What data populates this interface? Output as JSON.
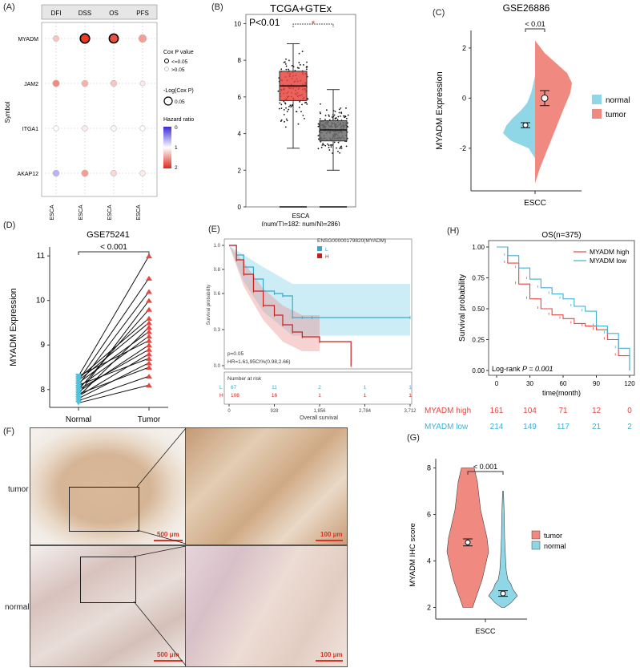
{
  "panels": {
    "A": "(A)",
    "B": "(B)",
    "C": "(C)",
    "D": "(D)",
    "E": "(E)",
    "F": "(F)",
    "G": "(G)",
    "H": "(H)"
  },
  "colors": {
    "tumor_red": "#e8463f",
    "normal_blue": "#4fc3dc",
    "ink": "#222222",
    "tumor_violin": "#f08a80",
    "normal_violin": "#8fd6e6",
    "gray_box": "#6e6e6e"
  },
  "chart_data": [
    {
      "id": "A",
      "type": "scatter",
      "columns": [
        "DFI",
        "DSS",
        "OS",
        "PFS"
      ],
      "column_bottom_labels": [
        "ESCA",
        "ESCA",
        "ESCA",
        "ESCA"
      ],
      "rows": [
        "MYADM",
        "JAM2",
        "ITGA1",
        "AKAP12"
      ],
      "ylabel": "Symbol",
      "legend": {
        "cox_title": "Cox P value",
        "cox_items": [
          "<=0.05",
          ">0.05"
        ],
        "size_title": "-Log(Cox P)",
        "size_value": "0.05",
        "color_title": "Hazard ratio",
        "color_ticks": [
          "0",
          "1",
          "2"
        ]
      },
      "points": [
        {
          "row": "MYADM",
          "col": "DFI",
          "hr": 1.3,
          "size": 0.4,
          "sig": false
        },
        {
          "row": "MYADM",
          "col": "DSS",
          "hr": 2.0,
          "size": 1.0,
          "sig": true
        },
        {
          "row": "MYADM",
          "col": "OS",
          "hr": 1.9,
          "size": 0.95,
          "sig": true
        },
        {
          "row": "MYADM",
          "col": "PFS",
          "hr": 1.5,
          "size": 0.75,
          "sig": false
        },
        {
          "row": "JAM2",
          "col": "DFI",
          "hr": 1.6,
          "size": 0.55,
          "sig": false
        },
        {
          "row": "JAM2",
          "col": "DSS",
          "hr": 1.4,
          "size": 0.5,
          "sig": false
        },
        {
          "row": "JAM2",
          "col": "OS",
          "hr": 1.3,
          "size": 0.45,
          "sig": false
        },
        {
          "row": "JAM2",
          "col": "PFS",
          "hr": 1.1,
          "size": 0.25,
          "sig": false
        },
        {
          "row": "ITGA1",
          "col": "DFI",
          "hr": 1.0,
          "size": 0.3,
          "sig": false
        },
        {
          "row": "ITGA1",
          "col": "DSS",
          "hr": 1.1,
          "size": 0.35,
          "sig": false
        },
        {
          "row": "ITGA1",
          "col": "OS",
          "hr": 1.05,
          "size": 0.35,
          "sig": false
        },
        {
          "row": "ITGA1",
          "col": "PFS",
          "hr": 1.0,
          "size": 0.3,
          "sig": false
        },
        {
          "row": "AKAP12",
          "col": "DFI",
          "hr": 0.5,
          "size": 0.5,
          "sig": false
        },
        {
          "row": "AKAP12",
          "col": "DSS",
          "hr": 1.5,
          "size": 0.55,
          "sig": false
        },
        {
          "row": "AKAP12",
          "col": "OS",
          "hr": 1.2,
          "size": 0.4,
          "sig": false
        },
        {
          "row": "AKAP12",
          "col": "PFS",
          "hr": 1.1,
          "size": 0.35,
          "sig": false
        }
      ]
    },
    {
      "id": "B",
      "type": "box",
      "title": "TCGA+GTEx",
      "annotation": "P<0.01",
      "star": "*",
      "xlabel": "ESCA",
      "xsublabel": "(num(T)=182; num(N)=286)",
      "yticks": [
        "0",
        "2",
        "4",
        "6",
        "8",
        "10"
      ],
      "ylim": [
        0,
        10.5
      ],
      "boxes": [
        {
          "name": "T",
          "q1": 5.8,
          "median": 6.6,
          "q3": 7.4,
          "whisker_low": 3.2,
          "whisker_high": 8.9,
          "ymin_points": 2.9,
          "ymax_points": 9.1,
          "n": 182
        },
        {
          "name": "N",
          "q1": 3.6,
          "median": 4.2,
          "q3": 4.7,
          "whisker_low": 2.0,
          "whisker_high": 6.4,
          "ymin_points": 1.8,
          "ymax_points": 10.0,
          "n": 286
        }
      ]
    },
    {
      "id": "C",
      "type": "violin",
      "title": "GSE26886",
      "annotation": "< 0.01",
      "ylabel": "MYADM Expression",
      "xlabel": "ESCC",
      "yticks": [
        "-2",
        "0",
        "2"
      ],
      "ylim": [
        -3.7,
        2.7
      ],
      "legend": [
        "normal",
        "tumor"
      ],
      "groups": [
        {
          "name": "normal",
          "mean": -1.08,
          "ci": 0.1
        },
        {
          "name": "tumor",
          "mean": 0.0,
          "ci": 0.3
        }
      ]
    },
    {
      "id": "D",
      "type": "paired",
      "title": "GSE75241",
      "annotation": "< 0.001",
      "ylabel": "MYADM Expression",
      "categories": [
        "Normal",
        "Tumor"
      ],
      "yticks": [
        "8",
        "9",
        "10",
        "11"
      ],
      "ylim": [
        7.6,
        11.2
      ],
      "pairs": [
        [
          7.7,
          8.1
        ],
        [
          7.75,
          8.3
        ],
        [
          7.8,
          8.6
        ],
        [
          7.85,
          8.8
        ],
        [
          7.9,
          8.5
        ],
        [
          7.95,
          9.0
        ],
        [
          8.0,
          8.9
        ],
        [
          8.05,
          9.2
        ],
        [
          8.1,
          8.7
        ],
        [
          8.15,
          9.3
        ],
        [
          8.2,
          9.5
        ],
        [
          8.25,
          9.6
        ],
        [
          8.3,
          9.1
        ],
        [
          8.0,
          9.8
        ],
        [
          7.9,
          10.0
        ],
        [
          8.1,
          10.2
        ],
        [
          8.2,
          10.5
        ],
        [
          7.85,
          9.4
        ],
        [
          8.3,
          11.0
        ]
      ]
    },
    {
      "id": "E",
      "type": "line",
      "legend_title": "ENSG00000179820(MYADM)",
      "legend": [
        "L",
        "H"
      ],
      "ylabel": "Survival probability",
      "xlabel": "Overall survival",
      "yticks": [
        "0.0",
        "0.3",
        "0.6",
        "0.8",
        "1.0"
      ],
      "xticks": [
        "0",
        "928",
        "1,856",
        "2,784",
        "3,712"
      ],
      "stats": [
        "p=0.05",
        "HR=1.61,95CI%(0.98,2.66)"
      ],
      "risk_title": "Number at risk",
      "risk": [
        {
          "name": "L",
          "values": [
            "67",
            "11",
            "2",
            "1",
            "1"
          ]
        },
        {
          "name": "H",
          "values": [
            "108",
            "16",
            "1",
            "1",
            "1"
          ]
        }
      ],
      "series": [
        {
          "name": "L",
          "x": [
            0,
            150,
            300,
            500,
            700,
            928,
            1100,
            1300,
            1500,
            1700,
            3712
          ],
          "y": [
            1.0,
            0.92,
            0.82,
            0.72,
            0.62,
            0.6,
            0.58,
            0.4,
            0.4,
            0.4,
            0.4
          ]
        },
        {
          "name": "H",
          "x": [
            0,
            150,
            300,
            500,
            700,
            928,
            1100,
            1300,
            1500,
            1856,
            2500
          ],
          "y": [
            1.0,
            0.88,
            0.76,
            0.62,
            0.5,
            0.42,
            0.34,
            0.28,
            0.24,
            0.2,
            0.0
          ]
        }
      ]
    },
    {
      "id": "H",
      "type": "line",
      "title": "OS(n=375)",
      "ylabel": "Survival probability",
      "xlabel": "time(month)",
      "yticks": [
        "0.00",
        "0.25",
        "0.50",
        "0.75",
        "1.00"
      ],
      "xticks": [
        "0",
        "30",
        "60",
        "90",
        "120"
      ],
      "stat": "Log-rank ",
      "stat_p": "P = 0.001",
      "legend": [
        "MYADM high",
        "MYADM low"
      ],
      "risk": [
        {
          "name": "MYADM high",
          "values": [
            "161",
            "104",
            "71",
            "12",
            "0"
          ]
        },
        {
          "name": "MYADM low",
          "values": [
            "214",
            "149",
            "117",
            "21",
            "2"
          ]
        }
      ],
      "series": [
        {
          "name": "MYADM high",
          "x": [
            0,
            10,
            20,
            30,
            40,
            50,
            60,
            70,
            80,
            90,
            100,
            110,
            120
          ],
          "y": [
            1.0,
            0.87,
            0.7,
            0.58,
            0.5,
            0.45,
            0.42,
            0.38,
            0.36,
            0.33,
            0.25,
            0.12,
            0.0
          ]
        },
        {
          "name": "MYADM low",
          "x": [
            0,
            10,
            20,
            30,
            40,
            50,
            60,
            70,
            80,
            90,
            100,
            110,
            120
          ],
          "y": [
            1.0,
            0.93,
            0.83,
            0.74,
            0.67,
            0.62,
            0.58,
            0.52,
            0.48,
            0.36,
            0.3,
            0.18,
            0.0
          ]
        }
      ]
    },
    {
      "id": "G",
      "type": "violin",
      "annotation": "< 0.001",
      "ylabel": "MYADM IHC score",
      "xlabel": "ESCC",
      "yticks": [
        "2",
        "4",
        "6",
        "8"
      ],
      "ylim": [
        1.5,
        8.4
      ],
      "legend": [
        "tumor",
        "normal"
      ],
      "groups": [
        {
          "name": "tumor",
          "mean": 4.8,
          "ci": 0.15
        },
        {
          "name": "normal",
          "mean": 2.6,
          "ci": 0.12
        }
      ]
    }
  ],
  "histology": {
    "row_labels": [
      "tumor",
      "normal"
    ],
    "scale_low": "500 μm",
    "scale_high": "100 μm"
  }
}
